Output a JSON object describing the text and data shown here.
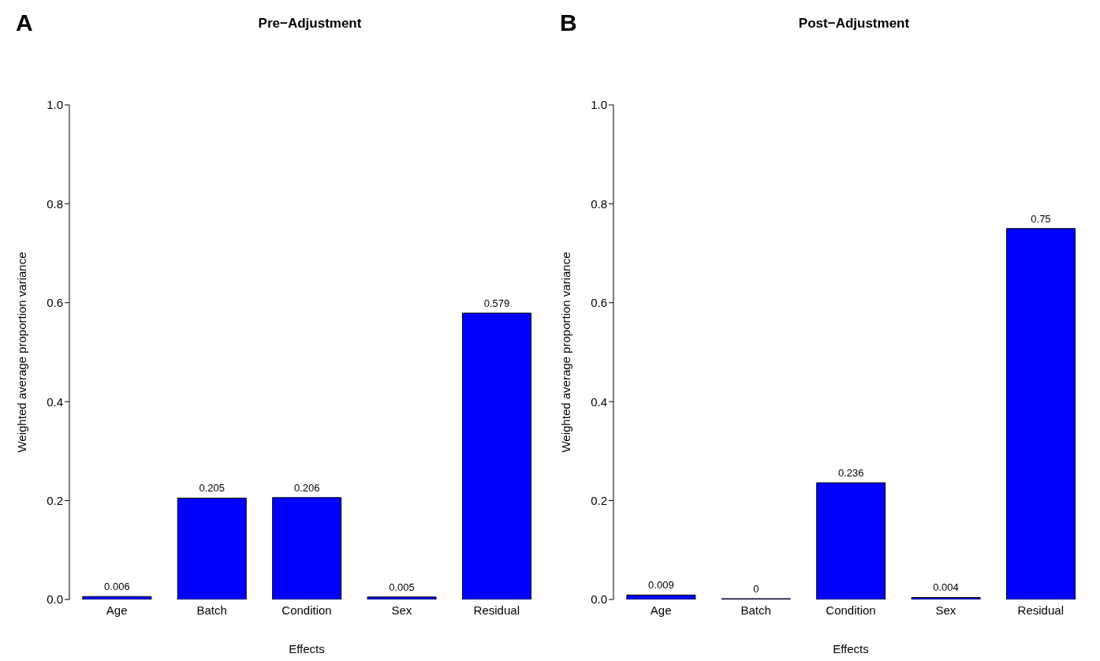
{
  "chart_data": [
    {
      "type": "bar",
      "title": "Pre−Adjustment",
      "xlabel": "Effects",
      "ylabel": "Weighted average proportion variance",
      "annotations": [
        "A"
      ],
      "categories": [
        "Age",
        "Batch",
        "Condition",
        "Sex",
        "Residual"
      ],
      "values": [
        0.006,
        0.205,
        0.206,
        0.005,
        0.579
      ],
      "color": "#0000ff",
      "ylim": [
        0,
        1
      ],
      "yticks": [
        {
          "value": 0,
          "label": "0.0"
        },
        {
          "value": 0.2,
          "label": "0.2"
        },
        {
          "value": 0.4,
          "label": "0.4"
        },
        {
          "value": 0.6,
          "label": "0.6"
        },
        {
          "value": 0.8,
          "label": "0.8"
        },
        {
          "value": 1,
          "label": "1.0"
        }
      ],
      "data_labels": true
    },
    {
      "type": "bar",
      "title": "Post−Adjustment",
      "xlabel": "Effects",
      "ylabel": "Weighted average proportion variance",
      "annotations": [
        "B"
      ],
      "categories": [
        "Age",
        "Batch",
        "Condition",
        "Sex",
        "Residual"
      ],
      "values": [
        0.009,
        0,
        0.236,
        0.004,
        0.75
      ],
      "color": "#0000ff",
      "ylim": [
        0,
        1
      ],
      "yticks": [
        {
          "value": 0,
          "label": "0.0"
        },
        {
          "value": 0.2,
          "label": "0.2"
        },
        {
          "value": 0.4,
          "label": "0.4"
        },
        {
          "value": 0.6,
          "label": "0.6"
        },
        {
          "value": 0.8,
          "label": "0.8"
        },
        {
          "value": 1,
          "label": "1.0"
        }
      ],
      "data_labels": true
    }
  ]
}
